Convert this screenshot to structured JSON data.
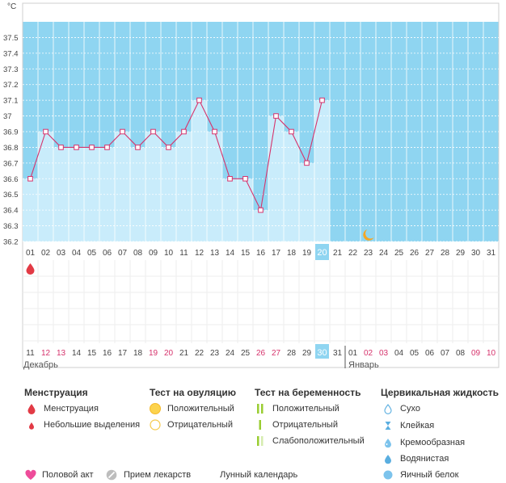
{
  "chart_data": {
    "type": "line",
    "unit": "°C",
    "ylim": [
      36.2,
      37.6
    ],
    "y_ticks": [
      "36.2",
      "36.3",
      "36.4",
      "36.5",
      "36.6",
      "36.7",
      "36.8",
      "36.9",
      "37",
      "37.1",
      "37.2",
      "37.3",
      "37.4",
      "37.5"
    ],
    "x_top": [
      "01",
      "02",
      "03",
      "04",
      "05",
      "06",
      "07",
      "08",
      "09",
      "10",
      "11",
      "12",
      "13",
      "14",
      "15",
      "16",
      "17",
      "18",
      "19",
      "20",
      "21",
      "22",
      "23",
      "24",
      "25",
      "26",
      "27",
      "28",
      "29",
      "30",
      "31"
    ],
    "x_bottom": [
      "11",
      "12",
      "13",
      "14",
      "15",
      "16",
      "17",
      "18",
      "19",
      "20",
      "21",
      "22",
      "23",
      "24",
      "25",
      "26",
      "27",
      "28",
      "29",
      "30",
      "31",
      "01",
      "02",
      "03",
      "04",
      "05",
      "06",
      "07",
      "08",
      "09",
      "10"
    ],
    "weekend_bottom": [
      false,
      true,
      true,
      false,
      false,
      false,
      false,
      false,
      true,
      true,
      false,
      false,
      false,
      false,
      false,
      true,
      true,
      false,
      false,
      false,
      false,
      false,
      true,
      true,
      false,
      false,
      false,
      false,
      false,
      true,
      true
    ],
    "current_index": 19,
    "values": [
      36.6,
      36.9,
      36.8,
      36.8,
      36.8,
      36.8,
      36.9,
      36.8,
      36.9,
      36.8,
      36.9,
      37.1,
      36.9,
      36.6,
      36.6,
      36.4,
      37.0,
      36.9,
      36.7,
      37.1
    ],
    "menstruation_days": [
      0
    ],
    "moon_day_index": 22,
    "month_labels": [
      "Декабрь",
      "Январь"
    ],
    "month_label_day_index": [
      0,
      21
    ],
    "colors": {
      "band": "#8fd5f1",
      "fill": "#c9ecfb",
      "line": "#d6336c",
      "weekend": "#d6336c",
      "current": "#8fd5f1"
    }
  },
  "legend": {
    "menstruation": {
      "title": "Менструация",
      "items": [
        "Менструация",
        "Небольшие выделения"
      ]
    },
    "ovulation": {
      "title": "Тест на овуляцию",
      "items": [
        "Положительный",
        "Отрицательный"
      ]
    },
    "pregnancy": {
      "title": "Тест на беременность",
      "items": [
        "Положительный",
        "Отрицательный",
        "Слабоположительный"
      ]
    },
    "cervical": {
      "title": "Цервикальная жидкость",
      "items": [
        "Сухо",
        "Клейкая",
        "Кремообразная",
        "Водянистая",
        "Яичный белок"
      ]
    },
    "bottom": [
      "Половой акт",
      "Прием лекарств",
      "Лунный календарь"
    ]
  }
}
